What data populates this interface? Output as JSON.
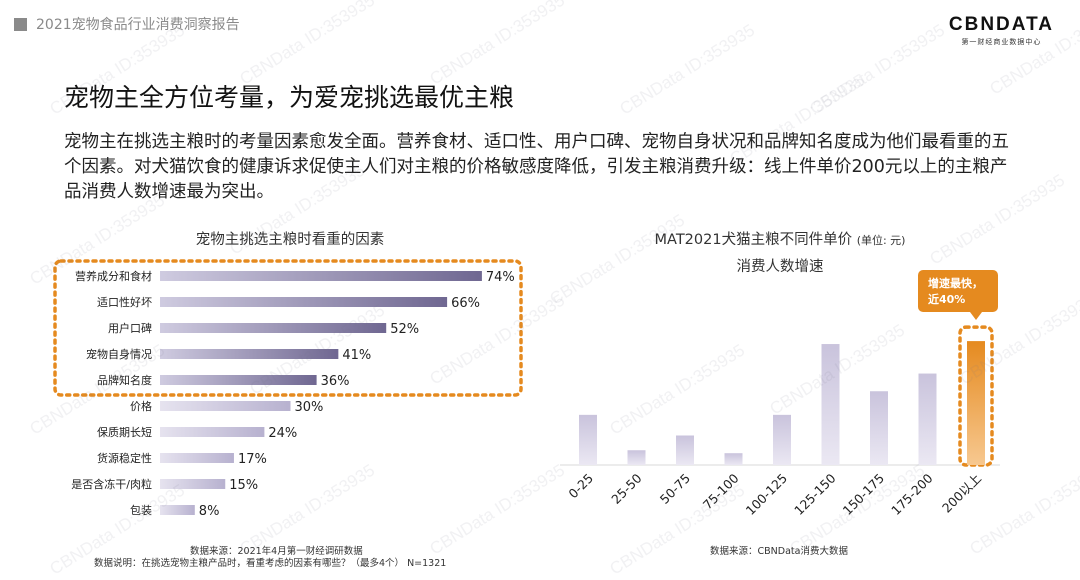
{
  "header": {
    "report_title": "2021宠物食品行业消费洞察报告"
  },
  "logo": {
    "main": "CBNDATA",
    "sub": "第一财经商业数据中心"
  },
  "headline": "宠物主全方位考量，为爱宠挑选最优主粮",
  "summary": "宠物主在挑选主粮时的考量因素愈发全面。营养食材、适口性、用户口碑、宠物自身状况和品牌知名度成为他们最看重的五个因素。对犬猫饮食的健康诉求促使主人们对主粮的价格敏感度降低，引发主粮消费升级：线上件单价200元以上的主粮产品消费人数增速最为突出。",
  "watermark": "CBNData ID:353935",
  "colors": {
    "bar_top": "#6f6791",
    "bar_light": "#b7b1cf",
    "highlight": "#e58a1f"
  },
  "chart_data": [
    {
      "type": "bar",
      "orientation": "horizontal",
      "title": "宠物主挑选主粮时看重的因素",
      "categories": [
        "营养成分和食材",
        "适口性好坏",
        "用户口碑",
        "宠物自身情况",
        "品牌知名度",
        "价格",
        "保质期长短",
        "货源稳定性",
        "是否含冻干/肉粒",
        "包装"
      ],
      "values": [
        74,
        66,
        52,
        41,
        36,
        30,
        24,
        17,
        15,
        8
      ],
      "value_suffix": "%",
      "highlighted_top": 5,
      "source": "数据来源：2021年4月第一财经调研数据",
      "note": "数据说明：在挑选宠物主粮产品时，看重考虑的因素有哪些？（最多4个） N=1321"
    },
    {
      "type": "bar",
      "title": "MAT2021犬猫主粮不同件单价",
      "title_unit": "(单位: 元)",
      "title_line2": "消费人数增速",
      "categories": [
        "0-25",
        "25-50",
        "50-75",
        "75-100",
        "100-125",
        "125-150",
        "150-175",
        "175-200",
        "200以上"
      ],
      "values": [
        17,
        5,
        10,
        4,
        17,
        41,
        25,
        31,
        42
      ],
      "highlight_index": 8,
      "callout": "增速最快，近40%",
      "source": "数据来源：CBNData消费大数据"
    }
  ]
}
